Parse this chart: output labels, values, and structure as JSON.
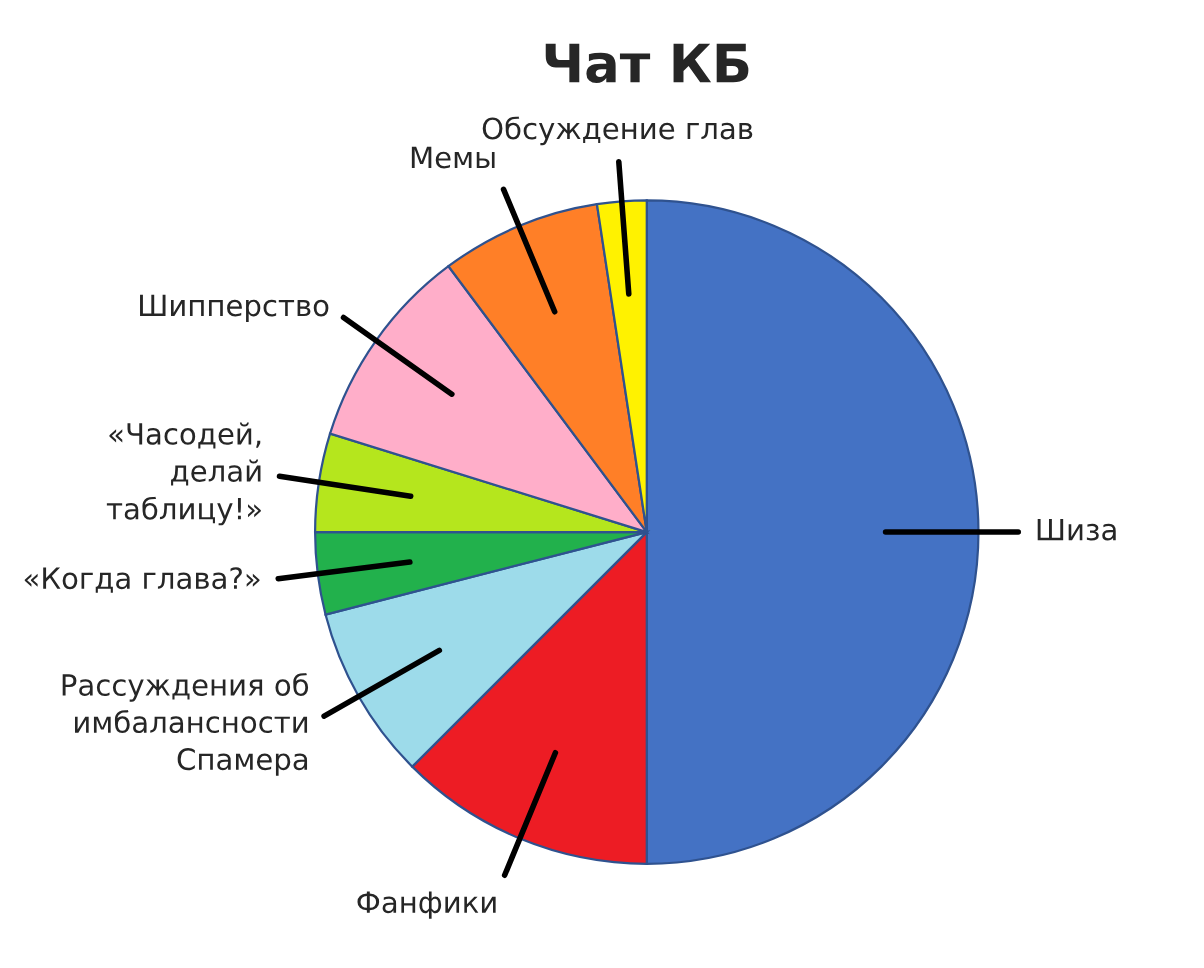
{
  "chart_data": {
    "type": "pie",
    "title": "Чат КБ",
    "categories": [
      "Шиза",
      "Фанфики",
      "Рассуждения об\nимбалансности\nСпамера",
      "«Когда глава?»",
      "«Часодей,\nделай\nтаблицу!»",
      "Шипперство",
      "Мемы",
      "Обсуждение глав"
    ],
    "values": [
      50,
      12.5,
      8.5,
      4,
      4.8,
      10,
      7.8,
      2.4
    ],
    "colors": [
      "#4472c4",
      "#ed1c24",
      "#9ddbea",
      "#22b14c",
      "#b5e61d",
      "#ffaec9",
      "#ff7f27",
      "#fff200"
    ]
  }
}
